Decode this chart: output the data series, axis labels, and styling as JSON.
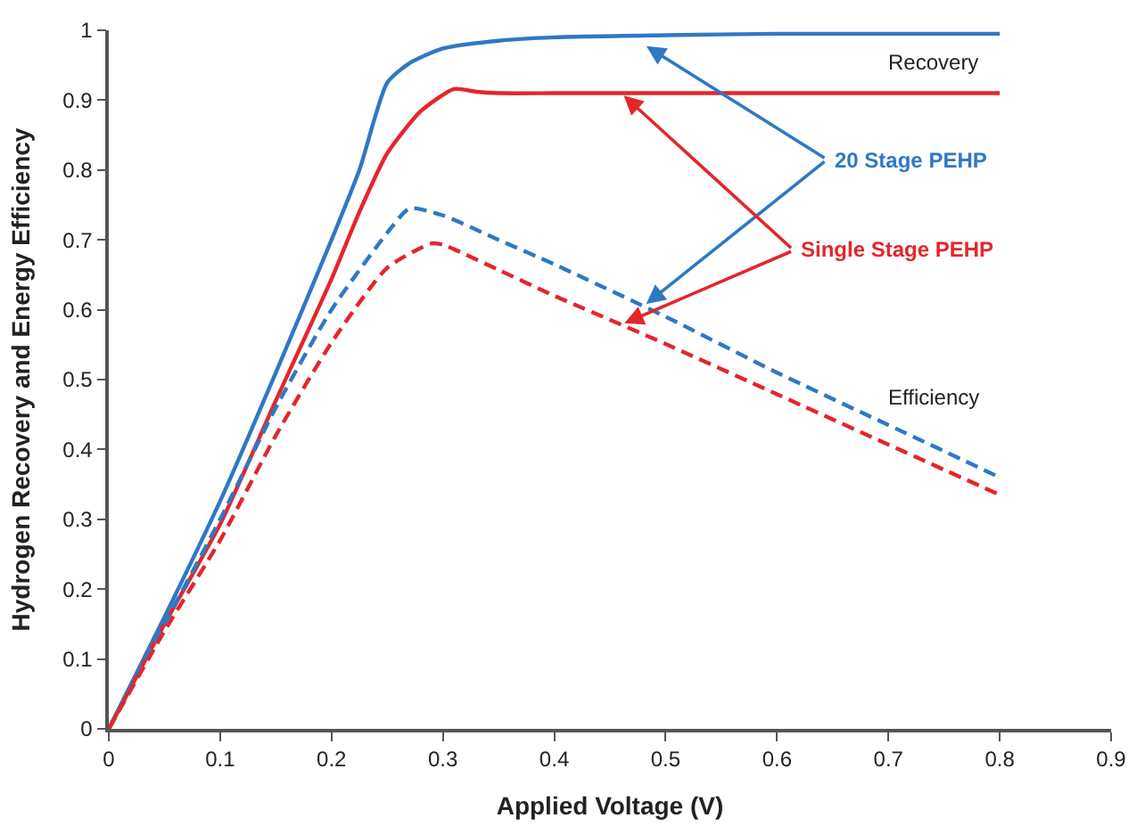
{
  "chart_data": {
    "type": "line",
    "xlabel": "Applied Voltage (V)",
    "ylabel": "Hydrogen Recovery and Energy Efficiency",
    "xlim": [
      0,
      0.9
    ],
    "xticks": [
      0,
      0.1,
      0.2,
      0.3,
      0.4,
      0.5,
      0.6,
      0.7,
      0.8,
      0.9
    ],
    "ylim": [
      0,
      1
    ],
    "yticks": [
      0,
      0.1,
      0.2,
      0.3,
      0.4,
      0.5,
      0.6,
      0.7,
      0.8,
      0.9,
      1
    ],
    "marker": "none",
    "series": [
      {
        "color": "#2f78c4",
        "line_style": "solid",
        "x": [
          0,
          0.05,
          0.1,
          0.15,
          0.2,
          0.225,
          0.25,
          0.27,
          0.3,
          0.35,
          0.4,
          0.5,
          0.6,
          0.7,
          0.8
        ],
        "values": [
          0,
          0.16,
          0.326,
          0.51,
          0.7,
          0.8,
          0.925,
          0.953,
          0.974,
          0.985,
          0.99,
          0.993,
          0.995,
          0.995,
          0.995
        ]
      },
      {
        "color": "#e3262b",
        "line_style": "solid",
        "x": [
          0,
          0.05,
          0.1,
          0.15,
          0.2,
          0.225,
          0.25,
          0.28,
          0.31,
          0.33,
          0.35,
          0.4,
          0.5,
          0.6,
          0.7,
          0.8
        ],
        "values": [
          0,
          0.15,
          0.293,
          0.47,
          0.644,
          0.74,
          0.824,
          0.884,
          0.916,
          0.912,
          0.91,
          0.91,
          0.91,
          0.91,
          0.91,
          0.91
        ]
      },
      {
        "color": "#2f78c4",
        "line_style": "dashed",
        "x": [
          0,
          0.05,
          0.1,
          0.15,
          0.2,
          0.25,
          0.27,
          0.3,
          0.35,
          0.4,
          0.5,
          0.6,
          0.7,
          0.8
        ],
        "values": [
          0,
          0.15,
          0.3,
          0.46,
          0.6,
          0.71,
          0.745,
          0.735,
          0.7,
          0.665,
          0.59,
          0.51,
          0.435,
          0.36
        ]
      },
      {
        "color": "#e3262b",
        "line_style": "dashed",
        "x": [
          0,
          0.05,
          0.1,
          0.15,
          0.2,
          0.25,
          0.29,
          0.3,
          0.35,
          0.4,
          0.5,
          0.6,
          0.7,
          0.8
        ],
        "values": [
          0,
          0.14,
          0.27,
          0.42,
          0.553,
          0.66,
          0.695,
          0.693,
          0.657,
          0.62,
          0.551,
          0.479,
          0.407,
          0.335
        ]
      }
    ],
    "annotations": [
      "Recovery",
      "Efficiency",
      {
        "text": "20 Stage PEHP",
        "x": 0.48,
        "y": 0.98
      },
      {
        "text": "Single Stage PEHP",
        "x": 0.46,
        "y": 0.91
      }
    ]
  }
}
